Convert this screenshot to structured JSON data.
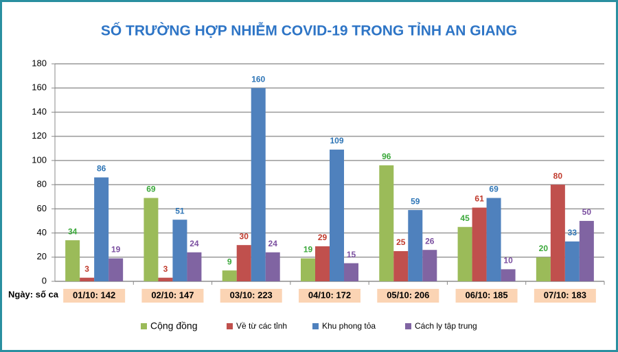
{
  "chart_data": {
    "type": "bar",
    "title": "SỐ TRƯỜNG HỢP NHIỄM COVID-19 TRONG TỈNH AN GIANG",
    "x_label": "Ngày: số ca",
    "categories": [
      "01/10: 142",
      "02/10: 147",
      "03/10: 223",
      "04/10: 172",
      "05/10: 206",
      "06/10: 185",
      "07/10: 183"
    ],
    "series": [
      {
        "name": "Cộng đồng",
        "color": "#9bbb59",
        "label_color": "#3aa83a",
        "values": [
          34,
          69,
          9,
          19,
          96,
          45,
          20
        ]
      },
      {
        "name": "Về từ các tỉnh",
        "color": "#c0504d",
        "label_color": "#c0392b",
        "values": [
          3,
          3,
          30,
          29,
          25,
          61,
          80
        ]
      },
      {
        "name": "Khu phong tỏa",
        "color": "#4f81bd",
        "label_color": "#2e75b6",
        "values": [
          86,
          51,
          160,
          109,
          59,
          69,
          33
        ]
      },
      {
        "name": "Cách ly tập trung",
        "color": "#8064a2",
        "label_color": "#7b4fa0",
        "values": [
          19,
          24,
          24,
          15,
          26,
          10,
          50
        ]
      }
    ],
    "ylim": [
      0,
      180
    ],
    "yticks": [
      0,
      20,
      40,
      60,
      80,
      100,
      120,
      140,
      160,
      180
    ],
    "grid": true,
    "legend": "bottom"
  }
}
